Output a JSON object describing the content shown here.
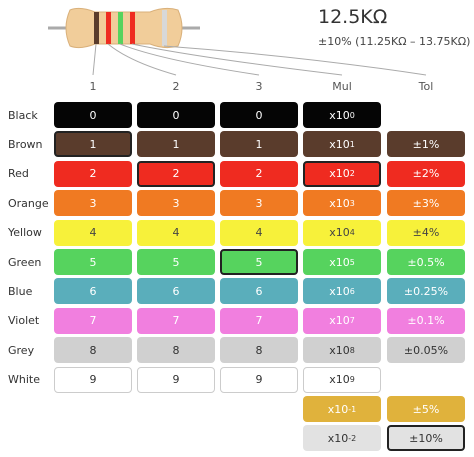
{
  "header": {
    "value": "12.5KΩ",
    "tolerance": "±10% (11.25KΩ – 13.75KΩ)"
  },
  "columns": [
    "1",
    "2",
    "3",
    "Mul",
    "Tol"
  ],
  "selected": [
    1,
    2,
    5,
    2,
    11
  ],
  "rows": [
    {
      "name": "Black",
      "color": "#050505",
      "text": "#ffffff",
      "digit": "0",
      "mul": "x10",
      "exp": "0"
    },
    {
      "name": "Brown",
      "color": "#5a3c2c",
      "text": "#ffffff",
      "digit": "1",
      "mul": "x10",
      "exp": "1",
      "tol": "±1%"
    },
    {
      "name": "Red",
      "color": "#ef2b20",
      "text": "#ffffff",
      "digit": "2",
      "mul": "x10",
      "exp": "2",
      "tol": "±2%"
    },
    {
      "name": "Orange",
      "color": "#f07a22",
      "text": "#ffffff",
      "digit": "3",
      "mul": "x10",
      "exp": "3",
      "tol": "±3%"
    },
    {
      "name": "Yellow",
      "color": "#f7f13a",
      "text": "#444444",
      "digit": "4",
      "mul": "x10",
      "exp": "4",
      "tol": "±4%"
    },
    {
      "name": "Green",
      "color": "#56d35e",
      "text": "#ffffff",
      "digit": "5",
      "mul": "x10",
      "exp": "5",
      "tol": "±0.5%"
    },
    {
      "name": "Blue",
      "color": "#5aaebb",
      "text": "#ffffff",
      "digit": "6",
      "mul": "x10",
      "exp": "6",
      "tol": "±0.25%"
    },
    {
      "name": "Violet",
      "color": "#f17fdf",
      "text": "#ffffff",
      "digit": "7",
      "mul": "x10",
      "exp": "7",
      "tol": "±0.1%"
    },
    {
      "name": "Grey",
      "color": "#d0d0d0",
      "text": "#333333",
      "digit": "8",
      "mul": "x10",
      "exp": "8",
      "tol": "±0.05%"
    },
    {
      "name": "White",
      "color": "#ffffff",
      "text": "#333333",
      "digit": "9",
      "mul": "x10",
      "exp": "9"
    },
    {
      "color": "#e0b23c",
      "text": "#ffffff",
      "mul": "x10",
      "exp": "-1",
      "tol": "±5%"
    },
    {
      "color": "#e2e2e2",
      "text": "#333333",
      "mul": "x10",
      "exp": "-2",
      "tol": "±10%"
    }
  ]
}
